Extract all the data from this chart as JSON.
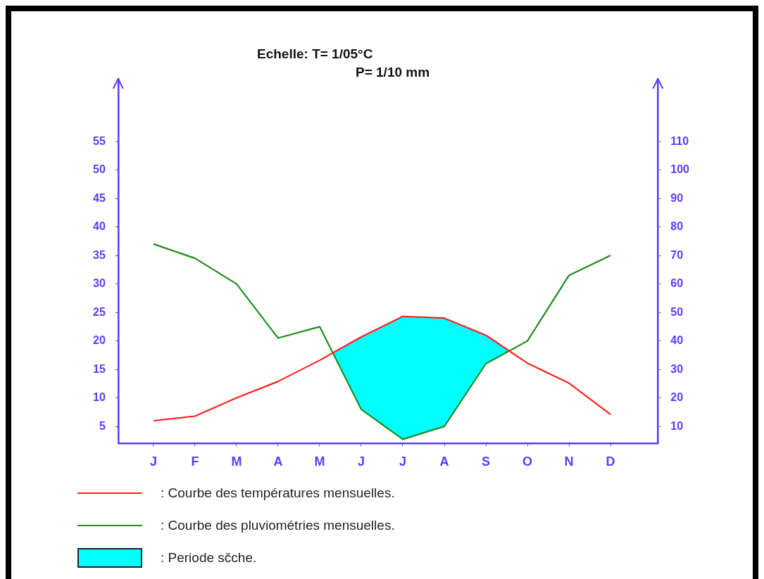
{
  "chart_data": {
    "type": "line",
    "title": "Echelle: T= 1/05°C",
    "subtitle": "P= 1/10 mm",
    "categories": [
      "J",
      "F",
      "M",
      "A",
      "M",
      "J",
      "J",
      "A",
      "S",
      "O",
      "N",
      "D"
    ],
    "ylim": [
      2,
      66
    ],
    "yticks": [
      5,
      10,
      15,
      20,
      25,
      30,
      35,
      40,
      45,
      50,
      55
    ],
    "y2lim": [
      4,
      132
    ],
    "y2ticks": [
      10,
      20,
      30,
      40,
      50,
      60,
      70,
      80,
      90,
      100,
      110
    ],
    "series": [
      {
        "name": ": Courbe des températures mensuelles.",
        "color": "#ff2020",
        "values": [
          6,
          6.8,
          10,
          12.9,
          16.6,
          20.7,
          24.3,
          24,
          21,
          16.1,
          12.6,
          7.1
        ]
      },
      {
        "name": ": Courbe des pluviométries mensuelles.",
        "color": "#1e8c1e",
        "axis": "y2",
        "values": [
          74,
          69,
          60,
          41,
          45,
          16,
          5.5,
          10,
          32,
          40,
          63,
          70
        ]
      }
    ],
    "annotations": [
      ": Periode sčche."
    ],
    "grid": false,
    "legend": "bottom",
    "marker": "none",
    "line_style": "solid"
  }
}
